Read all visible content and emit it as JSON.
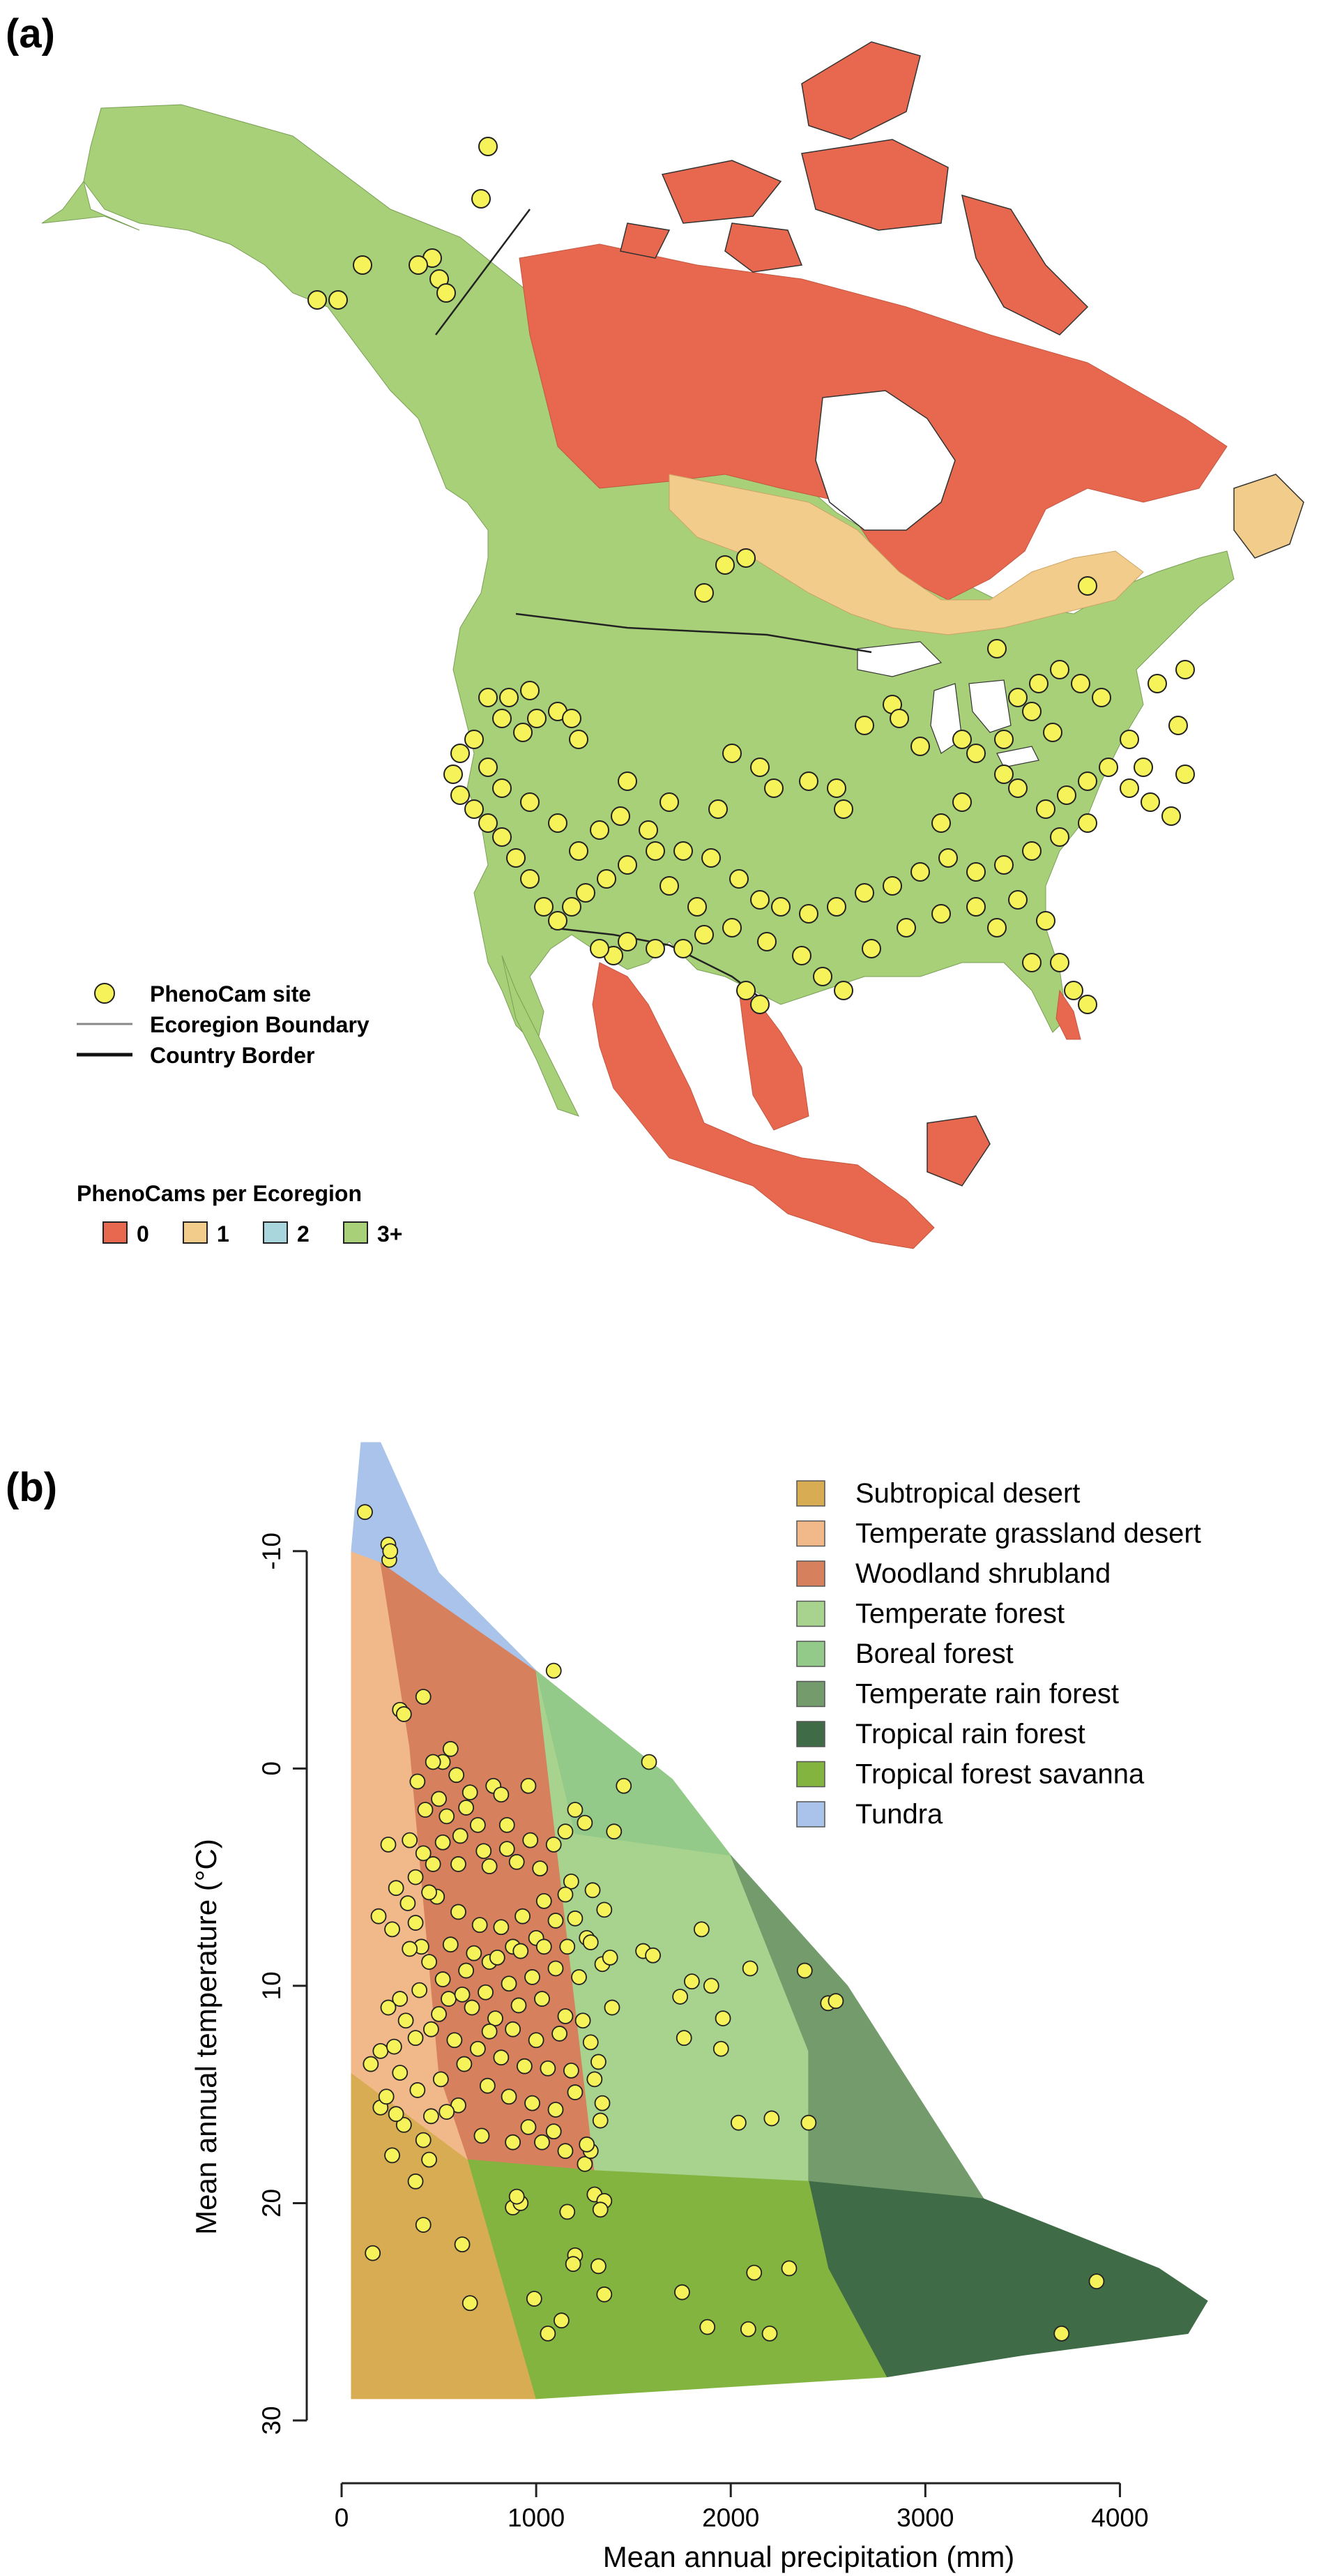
{
  "panel_a": {
    "label": "(a)",
    "legend": {
      "site": "PhenoCam site",
      "ecoregion": "Ecoregion Boundary",
      "border": "Country Border"
    },
    "count_legend": {
      "title": "PhenoCams per Ecoregion",
      "items": [
        {
          "label": "0",
          "color": "#e8684f"
        },
        {
          "label": "1",
          "color": "#f2cc8a"
        },
        {
          "label": "2",
          "color": "#a9d6dc"
        },
        {
          "label": "3+",
          "color": "#a8d078"
        }
      ]
    },
    "colors": {
      "site": "#f5f25a",
      "land_3plus": "#a8d078",
      "land_0": "#e8684f",
      "land_1": "#f2cc8a"
    }
  },
  "panel_b": {
    "label": "(b)",
    "biomes": [
      {
        "name": "Subtropical desert",
        "color": "#d8ac52"
      },
      {
        "name": "Temperate grassland desert",
        "color": "#f1b98a"
      },
      {
        "name": "Woodland shrubland",
        "color": "#d6805d"
      },
      {
        "name": "Temperate forest",
        "color": "#a8d38e"
      },
      {
        "name": "Boreal forest",
        "color": "#93c989"
      },
      {
        "name": "Temperate rain forest",
        "color": "#739b6c"
      },
      {
        "name": "Tropical rain forest",
        "color": "#3f6b47"
      },
      {
        "name": "Tropical forest savanna",
        "color": "#84b440"
      },
      {
        "name": "Tundra",
        "color": "#a9c3ea"
      }
    ]
  },
  "chart_data": {
    "type": "scatter",
    "xlabel": "Mean annual precipitation (mm)",
    "ylabel": "Mean annual temperature (°C)",
    "xlim": [
      0,
      4500
    ],
    "ylim": [
      -15,
      30
    ],
    "y_inverted": true,
    "x_ticks": [
      "0",
      "1000",
      "2000",
      "3000",
      "4000"
    ],
    "y_ticks": [
      "-10",
      "0",
      "10",
      "20",
      "30"
    ],
    "series": [
      {
        "name": "PhenoCam site",
        "color": "#f5f25a",
        "points": [
          [
            120,
            -11.8
          ],
          [
            240,
            -10.3
          ],
          [
            245,
            -9.6
          ],
          [
            250,
            -10.0
          ],
          [
            1090,
            -4.5
          ],
          [
            300,
            -2.7
          ],
          [
            320,
            -2.5
          ],
          [
            420,
            -3.3
          ],
          [
            1450,
            0.8
          ],
          [
            780,
            0.8
          ],
          [
            960,
            0.8
          ],
          [
            1580,
            -0.3
          ],
          [
            520,
            -0.3
          ],
          [
            560,
            -0.9
          ],
          [
            470,
            -0.3
          ],
          [
            390,
            0.6
          ],
          [
            240,
            3.5
          ],
          [
            350,
            3.3
          ],
          [
            640,
            1.8
          ],
          [
            700,
            2.6
          ],
          [
            850,
            2.6
          ],
          [
            820,
            1.2
          ],
          [
            1200,
            1.9
          ],
          [
            1400,
            2.9
          ],
          [
            1150,
            2.9
          ],
          [
            1250,
            2.5
          ],
          [
            2100,
            9.2
          ],
          [
            1850,
            7.4
          ],
          [
            1900,
            10.0
          ],
          [
            1800,
            9.8
          ],
          [
            1550,
            8.4
          ],
          [
            1600,
            8.6
          ],
          [
            1740,
            10.5
          ],
          [
            1960,
            11.5
          ],
          [
            2380,
            9.3
          ],
          [
            2500,
            10.8
          ],
          [
            2540,
            10.7
          ],
          [
            1950,
            12.9
          ],
          [
            1760,
            12.4
          ],
          [
            2040,
            16.3
          ],
          [
            2210,
            16.1
          ],
          [
            2400,
            16.3
          ],
          [
            150,
            13.6
          ],
          [
            200,
            13.0
          ],
          [
            270,
            12.8
          ],
          [
            200,
            15.6
          ],
          [
            260,
            17.8
          ],
          [
            450,
            18.0
          ],
          [
            380,
            19.0
          ],
          [
            160,
            22.3
          ],
          [
            420,
            21.0
          ],
          [
            620,
            21.9
          ],
          [
            880,
            20.2
          ],
          [
            920,
            20.0
          ],
          [
            900,
            19.7
          ],
          [
            1160,
            20.4
          ],
          [
            1200,
            22.4
          ],
          [
            1190,
            22.8
          ],
          [
            1320,
            22.9
          ],
          [
            1750,
            24.1
          ],
          [
            1350,
            24.2
          ],
          [
            990,
            24.4
          ],
          [
            660,
            24.6
          ],
          [
            1880,
            25.7
          ],
          [
            2090,
            25.8
          ],
          [
            2120,
            23.2
          ],
          [
            2300,
            23.0
          ],
          [
            2200,
            26.0
          ],
          [
            1130,
            25.4
          ],
          [
            1060,
            26.0
          ],
          [
            3700,
            26.0
          ],
          [
            3880,
            23.6
          ],
          [
            1300,
            19.6
          ],
          [
            1350,
            19.9
          ],
          [
            1330,
            20.3
          ],
          [
            1250,
            18.2
          ],
          [
            1280,
            17.6
          ],
          [
            1340,
            15.4
          ],
          [
            1300,
            14.3
          ],
          [
            880,
            17.2
          ],
          [
            720,
            16.9
          ],
          [
            600,
            15.5
          ],
          [
            540,
            15.8
          ],
          [
            460,
            16.0
          ],
          [
            320,
            16.4
          ],
          [
            420,
            17.1
          ],
          [
            410,
            8.2
          ],
          [
            380,
            7.1
          ],
          [
            470,
            4.4
          ],
          [
            600,
            4.4
          ],
          [
            760,
            4.5
          ],
          [
            900,
            4.3
          ],
          [
            1020,
            4.6
          ],
          [
            1180,
            5.2
          ],
          [
            1290,
            5.6
          ],
          [
            1200,
            6.9
          ],
          [
            1350,
            6.5
          ],
          [
            1100,
            7.0
          ],
          [
            1000,
            7.8
          ],
          [
            880,
            8.2
          ],
          [
            760,
            8.9
          ],
          [
            640,
            9.3
          ],
          [
            520,
            9.7
          ],
          [
            400,
            10.2
          ],
          [
            300,
            10.6
          ],
          [
            240,
            11.0
          ],
          [
            330,
            11.6
          ],
          [
            460,
            12.0
          ],
          [
            580,
            12.5
          ],
          [
            700,
            12.9
          ],
          [
            820,
            13.3
          ],
          [
            940,
            13.7
          ],
          [
            1060,
            13.8
          ],
          [
            1180,
            13.9
          ],
          [
            1280,
            12.6
          ],
          [
            1150,
            11.4
          ],
          [
            1030,
            10.6
          ],
          [
            910,
            10.9
          ],
          [
            790,
            11.5
          ],
          [
            670,
            11.0
          ],
          [
            550,
            10.6
          ],
          [
            450,
            8.9
          ],
          [
            350,
            8.3
          ],
          [
            260,
            7.4
          ],
          [
            190,
            6.8
          ],
          [
            280,
            5.5
          ],
          [
            380,
            5.0
          ],
          [
            490,
            5.9
          ],
          [
            600,
            6.6
          ],
          [
            710,
            7.2
          ],
          [
            820,
            7.3
          ],
          [
            930,
            6.8
          ],
          [
            1040,
            6.1
          ],
          [
            1150,
            5.8
          ],
          [
            1260,
            7.8
          ],
          [
            1340,
            9.0
          ],
          [
            1220,
            9.6
          ],
          [
            1100,
            9.2
          ],
          [
            980,
            9.6
          ],
          [
            860,
            9.9
          ],
          [
            740,
            10.3
          ],
          [
            620,
            10.4
          ],
          [
            500,
            11.3
          ],
          [
            380,
            12.4
          ],
          [
            300,
            14.0
          ],
          [
            230,
            15.1
          ],
          [
            280,
            15.9
          ],
          [
            390,
            14.8
          ],
          [
            510,
            14.3
          ],
          [
            630,
            13.6
          ],
          [
            750,
            14.6
          ],
          [
            860,
            15.1
          ],
          [
            980,
            15.4
          ],
          [
            1100,
            15.7
          ],
          [
            1200,
            14.9
          ],
          [
            1320,
            13.5
          ],
          [
            1240,
            11.6
          ],
          [
            1120,
            12.2
          ],
          [
            1000,
            12.5
          ],
          [
            880,
            12.0
          ],
          [
            760,
            12.1
          ],
          [
            560,
            8.1
          ],
          [
            680,
            8.5
          ],
          [
            800,
            8.7
          ],
          [
            920,
            8.4
          ],
          [
            1040,
            8.2
          ],
          [
            1160,
            8.2
          ],
          [
            1280,
            8.0
          ],
          [
            1380,
            8.7
          ],
          [
            1390,
            11.0
          ],
          [
            1330,
            16.2
          ],
          [
            1260,
            17.3
          ],
          [
            1150,
            17.6
          ],
          [
            1030,
            17.2
          ],
          [
            960,
            16.5
          ],
          [
            1090,
            16.7
          ],
          [
            610,
            3.1
          ],
          [
            730,
            3.8
          ],
          [
            850,
            3.7
          ],
          [
            970,
            3.3
          ],
          [
            1090,
            3.5
          ],
          [
            540,
            2.2
          ],
          [
            660,
            1.1
          ],
          [
            590,
            0.3
          ],
          [
            500,
            1.4
          ],
          [
            430,
            1.9
          ],
          [
            450,
            5.7
          ],
          [
            340,
            6.2
          ],
          [
            420,
            3.9
          ],
          [
            520,
            3.4
          ]
        ]
      }
    ]
  }
}
